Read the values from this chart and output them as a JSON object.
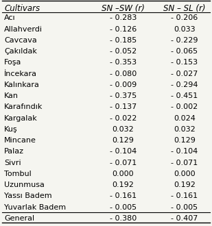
{
  "cultivars": [
    "Acı",
    "Allahverdi",
    "Cavcava",
    "Çakıldak",
    "Foşa",
    "İncekara",
    "Kalınkara",
    "Kan",
    "Karafındık",
    "Kargalak",
    "Kuş",
    "Mincane",
    "Palaz",
    "Sivri",
    "Tombul",
    "Uzunmusa",
    "Yassı Badem",
    "Yuvarlak Badem",
    "General"
  ],
  "sn_sw": [
    "- 0.283",
    "- 0.126",
    "- 0.185",
    "- 0.052",
    "- 0.353",
    "- 0.080",
    "- 0.009",
    "- 0.375",
    "- 0.137",
    "- 0.022",
    "0.032",
    "0.129",
    "- 0.104",
    "- 0.071",
    "0.000",
    "0.192",
    "- 0.161",
    "- 0.005",
    "- 0.380"
  ],
  "sn_sl": [
    "- 0.206",
    "0.033",
    "- 0.229",
    "- 0.065",
    "- 0.153",
    "- 0.027",
    "- 0.294",
    "- 0.451",
    "- 0.002",
    "0.024",
    "0.032",
    "0.129",
    "- 0.104",
    "- 0.071",
    "0.000",
    "0.192",
    "- 0.161",
    "- 0.005",
    "- 0.407"
  ],
  "col_header_cultivars": "Cultivars",
  "col_header_sn_sw": "SN –SW (r)",
  "col_header_sn_sl": "SN – SL (r)",
  "bg_color": "#f5f5f0",
  "text_color": "#000000",
  "header_fontsize": 8.5,
  "body_fontsize": 8.0
}
